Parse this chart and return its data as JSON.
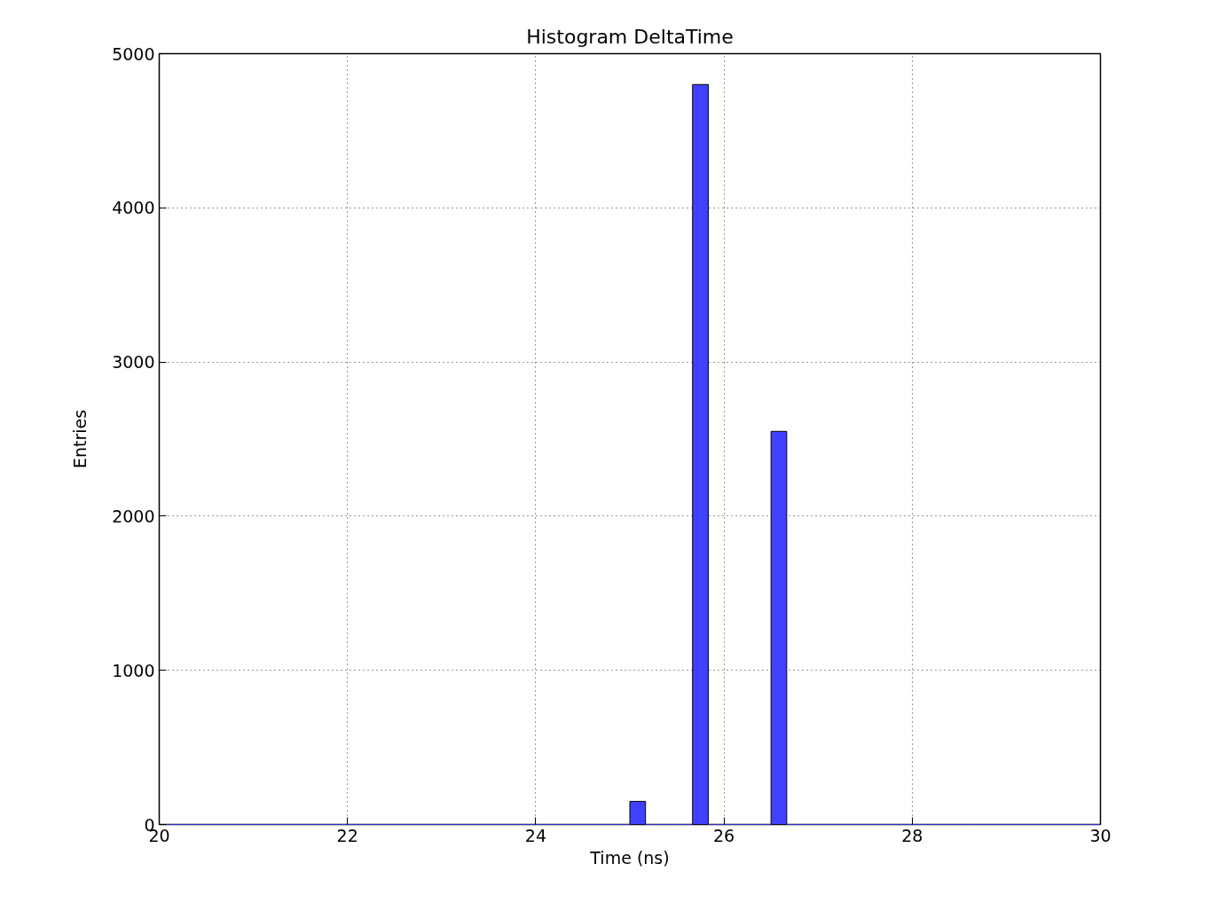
{
  "chart_data": {
    "type": "histogram",
    "title": "Histogram DeltaTime",
    "xlabel": "Time (ns)",
    "ylabel": "Entries",
    "bins": [
      20,
      20.1667,
      20.3333,
      20.5,
      20.6667,
      20.8333,
      21,
      21.1667,
      21.3333,
      21.5,
      21.6667,
      21.8333,
      22,
      22.1667,
      22.3333,
      22.5,
      22.6667,
      22.8333,
      23,
      23.1667,
      23.3333,
      23.5,
      23.6667,
      23.8333,
      24,
      24.1667,
      24.3333,
      24.5,
      24.6667,
      24.8333,
      25,
      25.1667,
      25.3333,
      25.5,
      25.6667,
      25.8333,
      26,
      26.1667,
      26.3333,
      26.5,
      26.6667,
      26.8333,
      27,
      27.1667,
      27.3333,
      27.5,
      27.6667,
      27.8333,
      28,
      28.1667,
      28.3333,
      28.5,
      28.6667,
      28.8333,
      29,
      29.1667,
      29.3333,
      29.5,
      29.6667,
      29.8333,
      30
    ],
    "values": [
      0,
      0,
      0,
      0,
      0,
      0,
      0,
      0,
      0,
      0,
      0,
      0,
      0,
      0,
      0,
      0,
      0,
      0,
      0,
      0,
      0,
      0,
      0,
      0,
      0,
      0,
      0,
      0,
      0,
      0,
      150,
      0,
      0,
      0,
      4800,
      0,
      0,
      0,
      0,
      2550,
      0,
      0,
      0,
      0,
      0,
      0,
      0,
      0,
      0,
      0,
      0,
      0,
      0,
      0,
      0,
      0,
      0,
      0,
      0,
      0
    ],
    "color": "#4040ff",
    "xlim": [
      20,
      30
    ],
    "ylim": [
      0,
      5000
    ],
    "xticks": [
      20,
      22,
      24,
      26,
      28,
      30
    ],
    "yticks": [
      0,
      1000,
      2000,
      3000,
      4000,
      5000
    ],
    "grid": true
  }
}
